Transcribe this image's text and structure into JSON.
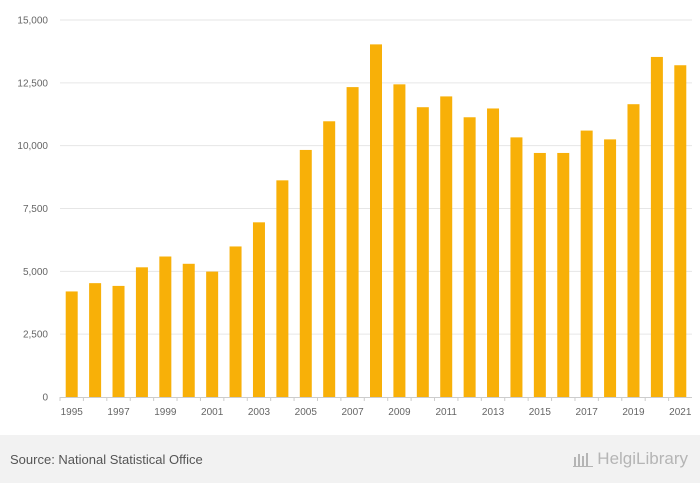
{
  "chart_data": {
    "type": "bar",
    "categories": [
      "1995",
      "1996",
      "1997",
      "1998",
      "1999",
      "2000",
      "2001",
      "2002",
      "2003",
      "2004",
      "2005",
      "2006",
      "2007",
      "2008",
      "2009",
      "2010",
      "2011",
      "2012",
      "2013",
      "2014",
      "2015",
      "2016",
      "2017",
      "2018",
      "2019",
      "2020",
      "2021"
    ],
    "values": [
      4200,
      4530,
      4420,
      5160,
      5590,
      5300,
      4990,
      5990,
      6950,
      8620,
      9830,
      10970,
      12330,
      14030,
      12440,
      11530,
      11960,
      11130,
      11480,
      10330,
      9710,
      9710,
      10600,
      10250,
      11650,
      13530,
      13200
    ],
    "x_tick_labels": [
      "1995",
      "1997",
      "1999",
      "2001",
      "2003",
      "2005",
      "2007",
      "2009",
      "2011",
      "2013",
      "2015",
      "2017",
      "2019",
      "2021"
    ],
    "y_tick_labels": [
      "0",
      "2,500",
      "5,000",
      "7,500",
      "10,000",
      "12,500",
      "15,000"
    ],
    "y_ticks": [
      0,
      2500,
      5000,
      7500,
      10000,
      12500,
      15000
    ],
    "ylim": [
      0,
      15000
    ],
    "title": "",
    "xlabel": "",
    "ylabel": "",
    "bar_color": "#f8b008",
    "grid": true
  },
  "footer": {
    "source": "Source: National Statistical Office",
    "brand": "HelgiLibrary"
  }
}
